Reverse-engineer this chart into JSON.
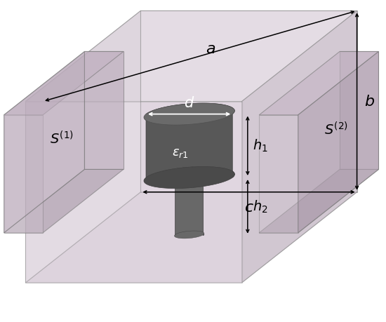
{
  "bg_color": "#ffffff",
  "box_face_color": "#d8ccd8",
  "box_top_color": "#e8e0e8",
  "box_bottom_color": "#c0b0c0",
  "box_left_color": "#ccc0cc",
  "box_right_color": "#c8bcC8",
  "box_back_color": "#d0c4d0",
  "box_edge_color": "#888888",
  "wg_color": "#b8a8b8",
  "wg_edge": "#777777",
  "cyl_top_color": "#6a6a6a",
  "cyl_side_color": "#585858",
  "cyl_dark_color": "#4a4a4a",
  "post_color": "#787878",
  "post_side_color": "#686868",
  "dim_color": "#111111",
  "white_color": "#ffffff"
}
